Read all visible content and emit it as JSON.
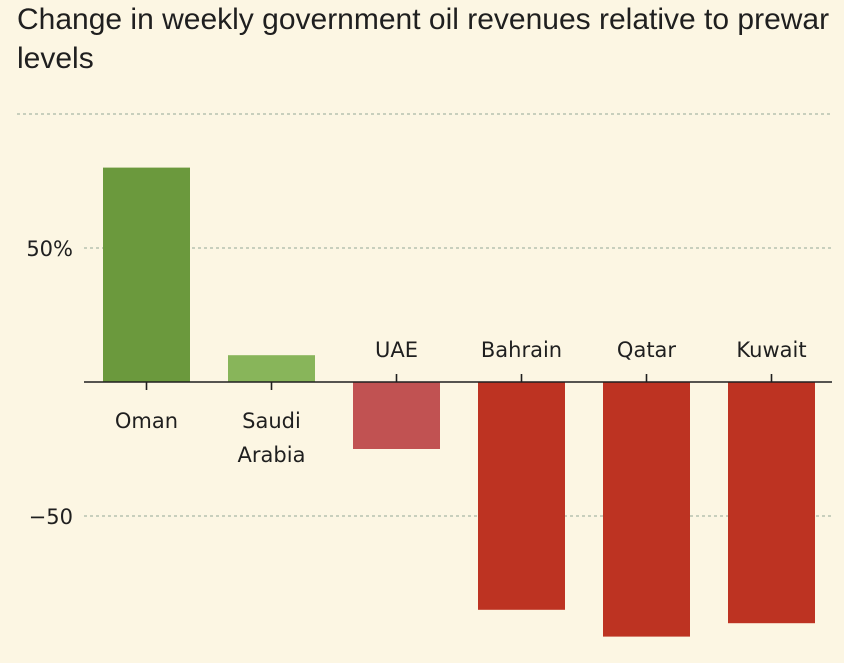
{
  "chart_data": {
    "type": "bar",
    "title": "Change in weekly government oil revenues relative to prewar levels",
    "xlabel": "",
    "ylabel": "",
    "categories": [
      [
        "Oman"
      ],
      [
        "Saudi",
        "Arabia"
      ],
      [
        "UAE"
      ],
      [
        "Bahrain"
      ],
      [
        "Qatar"
      ],
      [
        "Kuwait"
      ]
    ],
    "values": [
      80,
      10,
      -25,
      -85,
      -95,
      -90
    ],
    "bar_colors": [
      "#6b993d",
      "#88b55a",
      "#c15252",
      "#bd3322",
      "#bd3322",
      "#bd3322"
    ],
    "ylim": [
      -96,
      104
    ],
    "yticks": [
      {
        "value": 100,
        "label": ""
      },
      {
        "value": 50,
        "label": "50%"
      },
      {
        "value": -50,
        "label": "−50"
      }
    ],
    "grid": true,
    "gridline_color": "#a9b8a6",
    "background": "#fcf6e3"
  }
}
